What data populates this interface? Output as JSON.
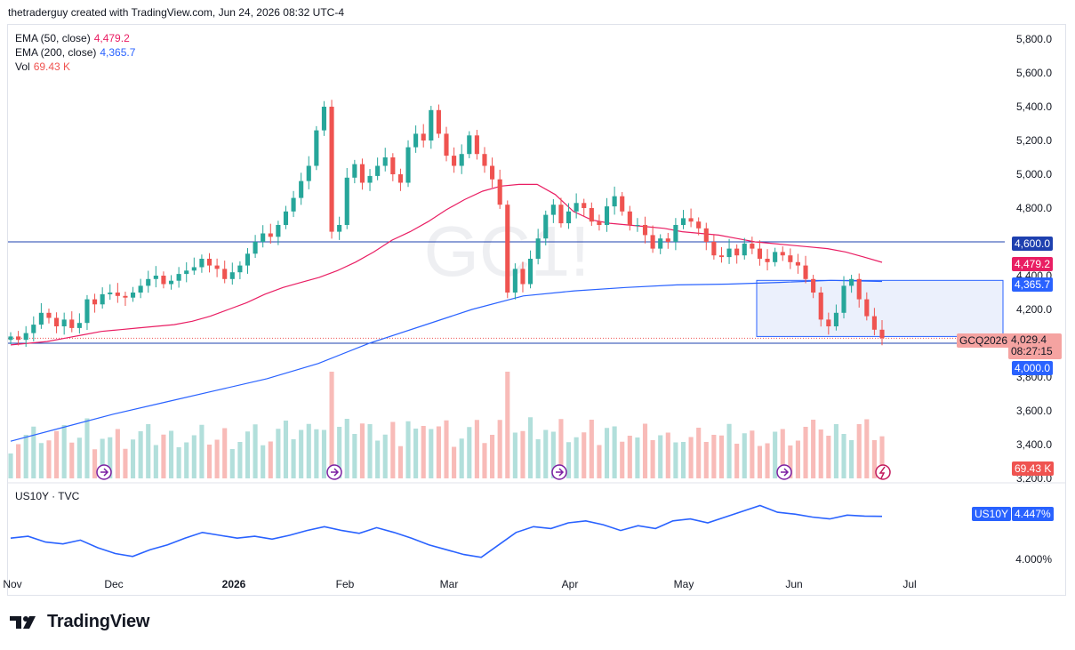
{
  "header": {
    "caption": "thetraderguy created with TradingView.com, Jun 24, 2026 08:32 UTC-4"
  },
  "legend": {
    "ema50_label": "EMA (50, close)",
    "ema50_value": "4,479.2",
    "ema200_label": "EMA (200, close)",
    "ema200_value": "4,365.7",
    "vol_label": "Vol",
    "vol_value": "69.43 K"
  },
  "watermark": "GC1!",
  "tags": {
    "level_4600": "4,600.0",
    "ema50": "4,479.2",
    "ema200": "4,365.7",
    "symbol": "GCQ2026",
    "price": "4,029.4",
    "countdown": "08:27:15",
    "level_4000": "4,000.0",
    "volume": "69.43 K",
    "us10y_symbol": "US10Y",
    "us10y_value": "4.447%"
  },
  "sub_legend": {
    "label": "US10Y · TVC"
  },
  "footer": {
    "brand": "TradingView"
  },
  "colors": {
    "up": "#26a69a",
    "down": "#ef5350",
    "up_light": "#b2dfdb",
    "down_light": "#f8bbb8",
    "ema50": "#e91e63",
    "ema200": "#2962ff",
    "yield": "#2962ff",
    "level": "#1e40af",
    "box_fill": "#e8edfb",
    "box_border": "#2962ff"
  },
  "chart_data": {
    "type": "candlestick",
    "ylim": [
      3200,
      5900
    ],
    "y_ticks": [
      "5,800.0",
      "5,600.0",
      "5,400.0",
      "5,200.0",
      "5,000.0",
      "4,800.0",
      "4,600.0",
      "4,400.0",
      "4,200.0",
      "4,000.0",
      "3,800.0",
      "3,600.0",
      "3,400.0",
      "3,200.0"
    ],
    "x_ticks": [
      "Nov",
      "Dec",
      "2026",
      "Feb",
      "Mar",
      "Apr",
      "May",
      "Jun",
      "Jul"
    ],
    "horizontal_levels": [
      4600.0,
      4000.0
    ],
    "last_price": 4029.4,
    "ema50_last": 4479.2,
    "ema200_last": 4365.7,
    "rectangle": {
      "price_top": 4372,
      "price_bottom": 4040
    },
    "close_series": [
      4040,
      4020,
      4060,
      4110,
      4180,
      4150,
      4100,
      4140,
      4090,
      4120,
      4260,
      4230,
      4290,
      4300,
      4280,
      4270,
      4300,
      4340,
      4380,
      4400,
      4350,
      4370,
      4410,
      4430,
      4450,
      4500,
      4460,
      4440,
      4380,
      4420,
      4460,
      4530,
      4600,
      4650,
      4630,
      4700,
      4780,
      4860,
      4960,
      5050,
      5260,
      5400,
      4660,
      4700,
      4980,
      5060,
      4950,
      4990,
      5050,
      5100,
      5000,
      4950,
      5160,
      5240,
      5200,
      5380,
      5240,
      5110,
      5050,
      5120,
      5230,
      5120,
      5050,
      4970,
      4820,
      4300,
      4440,
      4350,
      4500,
      4620,
      4760,
      4820,
      4710,
      4780,
      4830,
      4800,
      4720,
      4700,
      4810,
      4870,
      4780,
      4700,
      4700,
      4640,
      4560,
      4620,
      4600,
      4700,
      4740,
      4720,
      4680,
      4600,
      4520,
      4510,
      4560,
      4520,
      4590,
      4560,
      4500,
      4480,
      4540,
      4520,
      4480,
      4460,
      4380,
      4300,
      4140,
      4100,
      4180,
      4340,
      4380,
      4260,
      4160,
      4080,
      4029.4
    ],
    "ema50_series": [
      3990,
      4000,
      4010,
      4030,
      4050,
      4070,
      4080,
      4090,
      4100,
      4110,
      4130,
      4160,
      4200,
      4240,
      4290,
      4330,
      4360,
      4390,
      4430,
      4480,
      4540,
      4610,
      4660,
      4720,
      4790,
      4850,
      4900,
      4930,
      4940,
      4940,
      4880,
      4780,
      4730,
      4710,
      4700,
      4690,
      4680,
      4660,
      4650,
      4640,
      4620,
      4600,
      4590,
      4580,
      4570,
      4560,
      4540,
      4510,
      4479.2
    ],
    "ema200_series": [
      3420,
      3500,
      3580,
      3650,
      3720,
      3790,
      3880,
      4000,
      4100,
      4200,
      4280,
      4310,
      4330,
      4345,
      4350,
      4360,
      4372,
      4365.7
    ],
    "volume_last": "69.43 K",
    "us10y": {
      "ylim": [
        3.9,
        4.65
      ],
      "y_ticks": [
        "4.500%",
        "4.000%"
      ],
      "last": 4.447,
      "series": [
        4.22,
        4.24,
        4.18,
        4.16,
        4.2,
        4.12,
        4.06,
        4.03,
        4.1,
        4.15,
        4.22,
        4.28,
        4.25,
        4.22,
        4.24,
        4.21,
        4.25,
        4.3,
        4.34,
        4.3,
        4.27,
        4.33,
        4.28,
        4.22,
        4.15,
        4.1,
        4.05,
        4.02,
        4.15,
        4.28,
        4.34,
        4.32,
        4.38,
        4.4,
        4.36,
        4.3,
        4.35,
        4.32,
        4.4,
        4.42,
        4.38,
        4.44,
        4.5,
        4.56,
        4.49,
        4.47,
        4.44,
        4.42,
        4.46,
        4.45,
        4.447
      ]
    }
  }
}
